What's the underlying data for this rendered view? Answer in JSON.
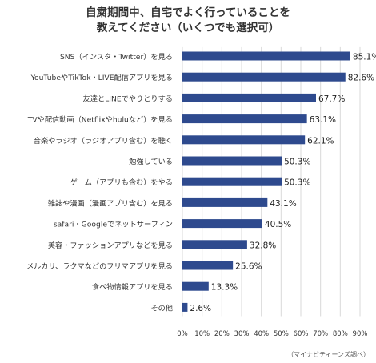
{
  "chart_data": {
    "type": "bar",
    "orientation": "horizontal",
    "title_lines": [
      "自粛期間中、自宅でよく行っていることを",
      "教えてください（いくつでも選択可）"
    ],
    "categories": [
      "SNS（インスタ・Twitter）を見る",
      "YouTubeやTikTok・LIVE配信アプリを見る",
      "友達とLINEでやりとりする",
      "TVや配信動画（Netflixやhuluなど）を見る",
      "音楽やラジオ（ラジオアプリ含む）を聴く",
      "勉強している",
      "ゲーム（アプリも含む）をやる",
      "雑誌や漫画（漫画アプリ含む）を見る",
      "safari・Googleでネットサーフィン",
      "美容・ファッションアプリなどを見る",
      "メルカリ、ラクマなどのフリマアプリを見る",
      "食べ物情報アプリを見る",
      "その他"
    ],
    "values": [
      85.1,
      82.6,
      67.7,
      63.1,
      62.1,
      50.3,
      50.3,
      43.1,
      40.5,
      32.8,
      25.6,
      13.3,
      2.6
    ],
    "value_labels": [
      "85.1%",
      "82.6%",
      "67.7%",
      "63.1%",
      "62.1%",
      "50.3%",
      "50.3%",
      "43.1%",
      "40.5%",
      "32.8%",
      "25.6%",
      "13.3%",
      "2.6%"
    ],
    "x_ticks": [
      0,
      10,
      20,
      30,
      40,
      50,
      60,
      70,
      80,
      90
    ],
    "x_tick_labels": [
      "0%",
      "10%",
      "20%",
      "30%",
      "40%",
      "50%",
      "60%",
      "70%",
      "80%",
      "90%"
    ],
    "xlim": [
      0,
      90
    ],
    "grid": true,
    "source_note": "（マイナビティーンズ調べ）",
    "bar_color": "#2e4a8e",
    "grid_color": "#d9d9d9",
    "text_color": "#333333"
  }
}
